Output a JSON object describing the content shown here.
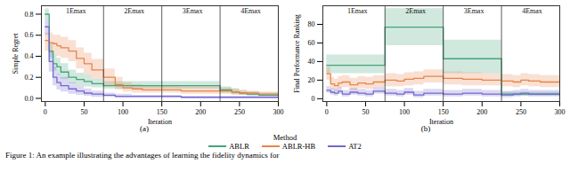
{
  "figure": {
    "legend_title": "Method",
    "caption": "Figure 1: An example illustrating the advantages of learning the fidelity dynamics for"
  },
  "chart_data": [
    {
      "type": "line",
      "panel_label": "(a)",
      "x_label": "Iteration",
      "y_label": "Simple Regret",
      "xlim": [
        -5,
        300
      ],
      "xticks": [
        0,
        50,
        100,
        150,
        200,
        250,
        300
      ],
      "ylim": [
        -0.03,
        0.88
      ],
      "yticks": [
        {
          "value": 0,
          "label": "0.0"
        },
        0.2,
        0.4,
        0.6,
        0.8
      ],
      "annotations": [
        {
          "x": 75,
          "label": "1Emax"
        },
        {
          "x": 150,
          "label": "2Emax"
        },
        {
          "x": 225,
          "label": "3Emax"
        },
        {
          "x": 300,
          "label": "4Emax"
        }
      ],
      "x": [
        0,
        5,
        10,
        15,
        20,
        30,
        40,
        50,
        60,
        75,
        90,
        100,
        112,
        125,
        150,
        175,
        200,
        225,
        240,
        250,
        260,
        275,
        300
      ],
      "series": [
        {
          "name": "ABLR",
          "color": "#45a37b",
          "values": [
            0.8,
            0.45,
            0.33,
            0.3,
            0.25,
            0.2,
            0.18,
            0.16,
            0.14,
            0.12,
            0.12,
            0.12,
            0.12,
            0.12,
            0.12,
            0.12,
            0.12,
            0.08,
            0.06,
            0.05,
            0.04,
            0.03,
            0.03
          ],
          "lower": [
            0.75,
            0.38,
            0.26,
            0.22,
            0.18,
            0.14,
            0.12,
            0.11,
            0.1,
            0.09,
            0.09,
            0.09,
            0.09,
            0.09,
            0.09,
            0.09,
            0.09,
            0.05,
            0.04,
            0.03,
            0.02,
            0.02,
            0.02
          ],
          "upper": [
            0.85,
            0.52,
            0.42,
            0.38,
            0.33,
            0.27,
            0.24,
            0.22,
            0.18,
            0.16,
            0.16,
            0.16,
            0.16,
            0.16,
            0.16,
            0.16,
            0.16,
            0.11,
            0.09,
            0.07,
            0.06,
            0.05,
            0.05
          ]
        },
        {
          "name": "ABLR-HB",
          "color": "#e8844a",
          "values": [
            0.55,
            0.53,
            0.52,
            0.5,
            0.48,
            0.45,
            0.38,
            0.33,
            0.27,
            0.2,
            0.13,
            0.1,
            0.09,
            0.08,
            0.08,
            0.07,
            0.07,
            0.07,
            0.06,
            0.05,
            0.05,
            0.04,
            0.04
          ],
          "lower": [
            0.45,
            0.43,
            0.42,
            0.4,
            0.38,
            0.35,
            0.28,
            0.22,
            0.18,
            0.12,
            0.08,
            0.06,
            0.05,
            0.05,
            0.05,
            0.04,
            0.04,
            0.04,
            0.03,
            0.03,
            0.03,
            0.02,
            0.02
          ],
          "upper": [
            0.62,
            0.62,
            0.6,
            0.6,
            0.58,
            0.55,
            0.48,
            0.43,
            0.37,
            0.28,
            0.2,
            0.15,
            0.13,
            0.12,
            0.12,
            0.11,
            0.11,
            0.1,
            0.09,
            0.08,
            0.07,
            0.06,
            0.06
          ]
        },
        {
          "name": "AT2",
          "color": "#7268d0",
          "values": [
            0.68,
            0.35,
            0.2,
            0.15,
            0.12,
            0.09,
            0.07,
            0.05,
            0.04,
            0.03,
            0.02,
            0.02,
            0.02,
            0.02,
            0.02,
            0.01,
            0.01,
            0.01,
            0.01,
            0.01,
            0.01,
            0.01,
            0.01
          ],
          "lower": [
            0.6,
            0.25,
            0.12,
            0.08,
            0.06,
            0.04,
            0.03,
            0.02,
            0.01,
            0.01,
            0,
            0,
            0,
            0,
            0,
            0,
            0,
            0,
            0,
            0,
            0,
            0,
            0
          ],
          "upper": [
            0.75,
            0.45,
            0.3,
            0.23,
            0.2,
            0.15,
            0.12,
            0.09,
            0.07,
            0.05,
            0.04,
            0.04,
            0.03,
            0.03,
            0.03,
            0.02,
            0.02,
            0.02,
            0.02,
            0.02,
            0.02,
            0.02,
            0.02
          ]
        }
      ]
    },
    {
      "type": "line",
      "panel_label": "(b)",
      "x_label": "Iteration",
      "y_label": "Final Performance Ranking",
      "xlim": [
        -5,
        300
      ],
      "xticks": [
        0,
        50,
        100,
        150,
        200,
        250,
        300
      ],
      "ylim": [
        -3,
        100
      ],
      "yticks": [
        0,
        20,
        40,
        60,
        80
      ],
      "annotations": [
        {
          "x": 75,
          "label": "1Emax"
        },
        {
          "x": 150,
          "label": "2Emax"
        },
        {
          "x": 225,
          "label": "3Emax"
        },
        {
          "x": 300,
          "label": "4Emax"
        }
      ],
      "x": [
        0,
        5,
        10,
        15,
        20,
        30,
        40,
        50,
        60,
        75,
        90,
        100,
        112,
        125,
        150,
        175,
        200,
        225,
        240,
        250,
        260,
        275,
        300
      ],
      "series": [
        {
          "name": "ABLR",
          "color": "#45a37b",
          "values": [
            36,
            36,
            36,
            36,
            36,
            36,
            36,
            36,
            36,
            77,
            77,
            77,
            77,
            77,
            43,
            43,
            43,
            5,
            5,
            5,
            5,
            5,
            5
          ],
          "lower": [
            27,
            27,
            27,
            27,
            27,
            27,
            27,
            27,
            27,
            57,
            57,
            57,
            57,
            57,
            27,
            27,
            27,
            3,
            3,
            3,
            3,
            3,
            3
          ],
          "upper": [
            47,
            47,
            47,
            47,
            47,
            47,
            47,
            47,
            47,
            97,
            97,
            97,
            97,
            97,
            63,
            63,
            63,
            7,
            7,
            7,
            7,
            7,
            7
          ]
        },
        {
          "name": "ABLR-HB",
          "color": "#e8844a",
          "values": [
            27,
            16,
            14,
            17,
            18,
            15,
            17,
            16,
            18,
            20,
            19,
            21,
            22,
            24,
            22,
            21,
            20,
            19,
            18,
            20,
            19,
            18,
            18
          ],
          "lower": [
            20,
            10,
            8,
            11,
            12,
            9,
            11,
            10,
            12,
            13,
            13,
            14,
            15,
            17,
            15,
            14,
            14,
            13,
            12,
            14,
            13,
            12,
            12
          ],
          "upper": [
            34,
            23,
            21,
            24,
            25,
            22,
            24,
            23,
            25,
            27,
            26,
            28,
            29,
            31,
            29,
            28,
            27,
            26,
            25,
            27,
            26,
            25,
            25
          ]
        },
        {
          "name": "AT2",
          "color": "#7268d0",
          "values": [
            9,
            7,
            6,
            8,
            5,
            7,
            6,
            5,
            8,
            6,
            5,
            7,
            4,
            6,
            5,
            6,
            5,
            4,
            5,
            6,
            5,
            5,
            4
          ],
          "lower": [
            6,
            4,
            3,
            5,
            2,
            4,
            3,
            2,
            5,
            3,
            2,
            4,
            1,
            3,
            2,
            3,
            2,
            1,
            2,
            3,
            2,
            2,
            1
          ],
          "upper": [
            13,
            11,
            10,
            12,
            9,
            11,
            10,
            9,
            12,
            10,
            9,
            11,
            8,
            10,
            9,
            10,
            9,
            8,
            9,
            10,
            9,
            9,
            8
          ]
        }
      ]
    }
  ]
}
